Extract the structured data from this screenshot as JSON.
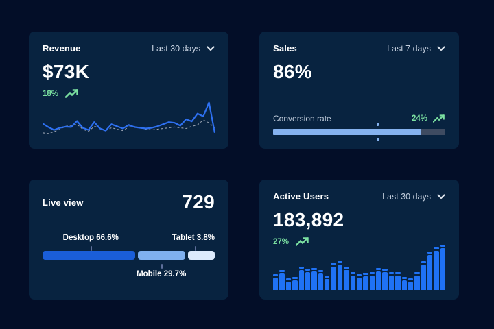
{
  "colors": {
    "page_bg": "#030e28",
    "card_bg": "#082340",
    "accent_green": "#7be0a1",
    "line_blue": "#2e70f0",
    "line_dashed_gray": "#97a1b0",
    "bar_blue": "#1f72f5",
    "desktop_blue": "#1a5ed9",
    "mobile_blue": "#7fb0ef",
    "tablet_blue": "#dceafc",
    "progress_fill": "#85b2ef",
    "progress_track": "#3e4b61",
    "range_text": "#c3cedd",
    "tick_gray": "#5e6f9b"
  },
  "cards": {
    "revenue": {
      "title": "Revenue",
      "range_label": "Last 30 days",
      "value": "$73K",
      "delta": "18%"
    },
    "sales": {
      "title": "Sales",
      "range_label": "Last 7 days",
      "value": "86%",
      "metric_label": "Conversion rate",
      "delta": "24%"
    },
    "live_view": {
      "title": "Live view",
      "value": "729",
      "desktop_label": "Desktop 66.6%",
      "mobile_label": "Mobile 29.7%",
      "tablet_label": "Tablet 3.8%"
    },
    "active_users": {
      "title": "Active Users",
      "range_label": "Last 30 days",
      "value": "183,892",
      "delta": "27%"
    }
  },
  "chart_data": [
    {
      "id": "revenue_trend",
      "type": "line",
      "title": "Revenue",
      "range": "Last 30 days",
      "headline_value": "$73K",
      "delta_pct": "18%",
      "note": "unlabeled sparkline; values are relative 0-100 estimates; ends with spike then sharp drop",
      "series": [
        {
          "name": "current",
          "style": "solid",
          "color": "#2e70f0",
          "values": [
            38,
            28,
            20,
            26,
            29,
            28,
            45,
            26,
            20,
            42,
            24,
            18,
            36,
            30,
            24,
            34,
            28,
            26,
            24,
            26,
            30,
            36,
            42,
            40,
            32,
            50,
            44,
            66,
            58,
            97,
            12
          ]
        },
        {
          "name": "previous",
          "style": "dashed",
          "color": "#97a1b0",
          "values": [
            12,
            10,
            15,
            22,
            30,
            33,
            36,
            22,
            16,
            30,
            26,
            18,
            26,
            22,
            18,
            28,
            30,
            26,
            22,
            20,
            22,
            24,
            26,
            28,
            26,
            24,
            30,
            34,
            48,
            40,
            26
          ]
        }
      ]
    },
    {
      "id": "conversion_progress",
      "type": "bar",
      "title": "Conversion rate",
      "headline_value": "86%",
      "delta_pct": "24%",
      "value_pct": 86,
      "marker_pct": 60,
      "fill_color": "#85b2ef",
      "track_color": "#3e4b61"
    },
    {
      "id": "device_split",
      "type": "bar",
      "title": "Live view",
      "headline_value": "729",
      "categories": [
        "Desktop",
        "Mobile",
        "Tablet"
      ],
      "values": [
        66.6,
        29.7,
        3.8
      ],
      "display_widths_pct": [
        54,
        27.5,
        15.5
      ],
      "colors": [
        "#1a5ed9",
        "#7fb0ef",
        "#dceafc"
      ],
      "note": "segment display widths are not proportional; tablet has a minimum visible width"
    },
    {
      "id": "active_users_trend",
      "type": "bar",
      "title": "Active Users",
      "range": "Last 30 days",
      "headline_value": "183,892",
      "delta_pct": "27%",
      "color": "#1f72f5",
      "note": "unlabeled sparkbars; values are relative 0-100 estimates; each bar drawn with a detached cap on top",
      "values": [
        29,
        40,
        19,
        23,
        48,
        42,
        44,
        39,
        27,
        56,
        61,
        48,
        35,
        29,
        32,
        35,
        45,
        42,
        35,
        35,
        23,
        19,
        35,
        61,
        84,
        94,
        100
      ]
    }
  ]
}
